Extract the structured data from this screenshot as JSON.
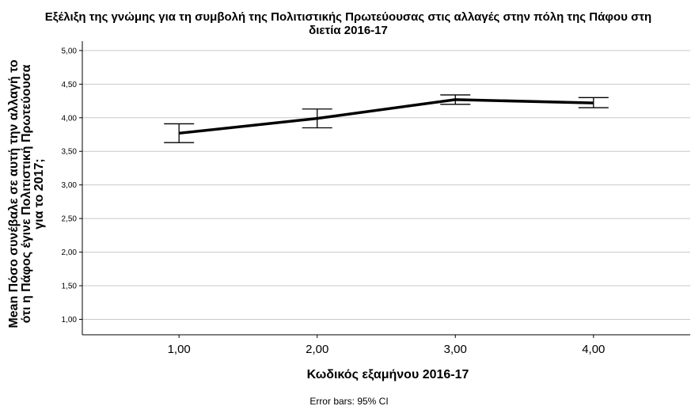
{
  "chart_data": {
    "type": "line",
    "title_line1": "Εξέλιξη της γνώμης για τη συμβολή της Πολιτιστικής Πρωτεύουσας στις αλλαγές στην πόλη της Πάφου στη",
    "title_line2": "διετία 2016-17",
    "xlabel": "Κωδικός εξαμήνου 2016-17",
    "ylabel_line1": "Mean Πόσο συνέβαλε σε αυτή την αλλαγή το",
    "ylabel_line2": "ότι η Πάφος έγινε Πολιτιστική Πρωτεύουσα",
    "ylabel_line3": "για το 2017;",
    "categories": [
      "1,00",
      "2,00",
      "3,00",
      "4,00"
    ],
    "x": [
      1,
      2,
      3,
      4
    ],
    "values": [
      3.77,
      3.99,
      4.27,
      4.22
    ],
    "ci_lower": [
      3.63,
      3.85,
      4.2,
      4.15
    ],
    "ci_upper": [
      3.91,
      4.13,
      4.34,
      4.3
    ],
    "yticks": [
      "1,00",
      "1,50",
      "2,00",
      "2,50",
      "3,00",
      "3,50",
      "4,00",
      "4,50",
      "5,00"
    ],
    "ytick_values": [
      1.0,
      1.5,
      2.0,
      2.5,
      3.0,
      3.5,
      4.0,
      4.5,
      5.0
    ],
    "ylim": [
      0.77,
      5.14
    ],
    "xlim": [
      0.3,
      4.7
    ],
    "grid": true,
    "note": "Error bars: 95% CI",
    "line_color": "#000000",
    "grid_color": "#c8c8c8"
  }
}
